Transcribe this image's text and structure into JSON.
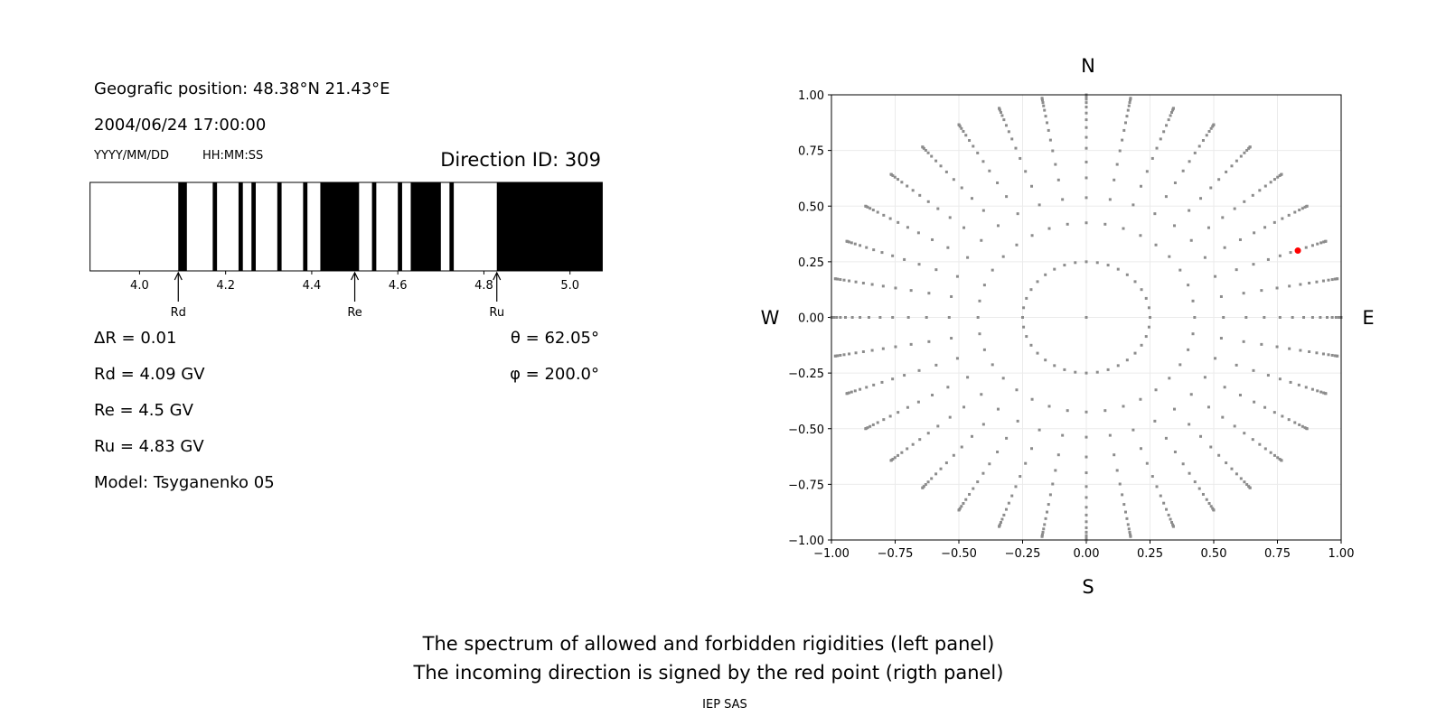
{
  "header": {
    "position": "Geografic position: 48.38°N 21.43°E",
    "datetime": "2004/06/24 17:00:00",
    "date_format": "YYYY/MM/DD",
    "time_format": "HH:MM:SS",
    "direction_id": "Direction ID: 309"
  },
  "params": {
    "delta_r": "ΔR = 0.01",
    "rd": "Rd = 4.09 GV",
    "re": "Re = 4.5 GV",
    "ru": "Ru = 4.83 GV",
    "model": "Model: Tsyganenko 05",
    "theta": "θ = 62.05°",
    "phi": "φ = 200.0°"
  },
  "captions": {
    "line1": "The spectrum of allowed and forbidden rigidities (left panel)",
    "line2": "The incoming direction is signed by the red point (rigth panel)",
    "credit": "IEP SAS"
  },
  "chart_data": [
    {
      "type": "bar",
      "xlim": [
        3.885,
        5.075
      ],
      "xticks": [
        "4.0",
        "4.2",
        "4.4",
        "4.6",
        "4.8",
        "5.0"
      ],
      "forbidden_intervals": [
        [
          4.09,
          4.11
        ],
        [
          4.17,
          4.18
        ],
        [
          4.23,
          4.24
        ],
        [
          4.26,
          4.27
        ],
        [
          4.32,
          4.33
        ],
        [
          4.38,
          4.39
        ],
        [
          4.42,
          4.51
        ],
        [
          4.54,
          4.55
        ],
        [
          4.6,
          4.61
        ],
        [
          4.63,
          4.7
        ],
        [
          4.72,
          4.73
        ],
        [
          4.83,
          5.075
        ]
      ],
      "colors": {
        "forbidden": "#000000",
        "allowed": "#ffffff"
      },
      "markers": [
        {
          "label": "Rd",
          "value": 4.09
        },
        {
          "label": "Re",
          "value": 4.5
        },
        {
          "label": "Ru",
          "value": 4.83
        }
      ]
    },
    {
      "type": "scatter",
      "xlim": [
        -1,
        1
      ],
      "ylim": [
        -1,
        1
      ],
      "xticks": [
        "−1.00",
        "−0.75",
        "−0.50",
        "−0.25",
        "0.00",
        "0.25",
        "0.50",
        "0.75",
        "1.00"
      ],
      "yticks": [
        "−1.00",
        "−0.75",
        "−0.50",
        "−0.25",
        "0.00",
        "0.25",
        "0.50",
        "0.75",
        "1.00"
      ],
      "grid": true,
      "directions": {
        "N": "N",
        "S": "S",
        "W": "W",
        "E": "E"
      },
      "grid_points": {
        "azimuth_step_deg": 10,
        "radii": [
          0.25,
          0.425,
          0.538,
          0.627,
          0.698,
          0.76,
          0.809,
          0.853,
          0.888,
          0.918,
          0.945,
          0.965,
          0.98,
          0.991,
          0.998,
          1.0
        ],
        "center": [
          0,
          0
        ],
        "color": "#8c8c8c"
      },
      "selected_point": {
        "x": 0.83,
        "y": 0.3,
        "color": "#ff0000"
      }
    }
  ]
}
